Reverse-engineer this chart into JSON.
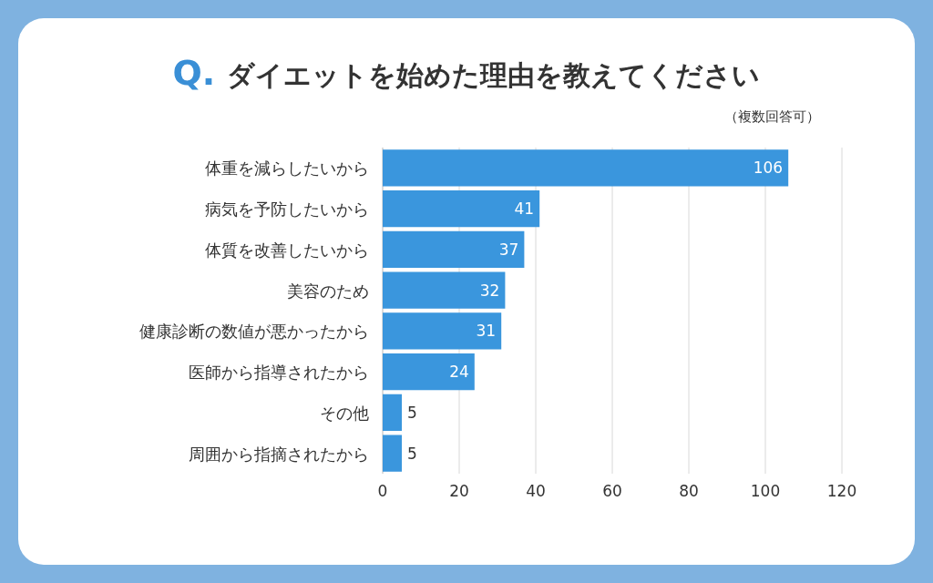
{
  "chart_data": {
    "type": "bar",
    "orientation": "horizontal",
    "title": "Q. ダイエットを始めた理由を教えてください",
    "subtitle": "（複数回答可）",
    "categories": [
      "体重を減らしたいから",
      "病気を予防したいから",
      "体質を改善したいから",
      "美容のため",
      "健康診断の数値が悪かったから",
      "医師から指導されたから",
      "その他",
      "周囲から指摘されたから"
    ],
    "values": [
      106,
      41,
      37,
      32,
      31,
      24,
      5,
      5
    ],
    "color": "#3a96dd",
    "xlim": [
      0,
      120
    ],
    "xticks": [
      0,
      20,
      40,
      60,
      80,
      100,
      120
    ],
    "grid": "x",
    "data_labels": true
  }
}
